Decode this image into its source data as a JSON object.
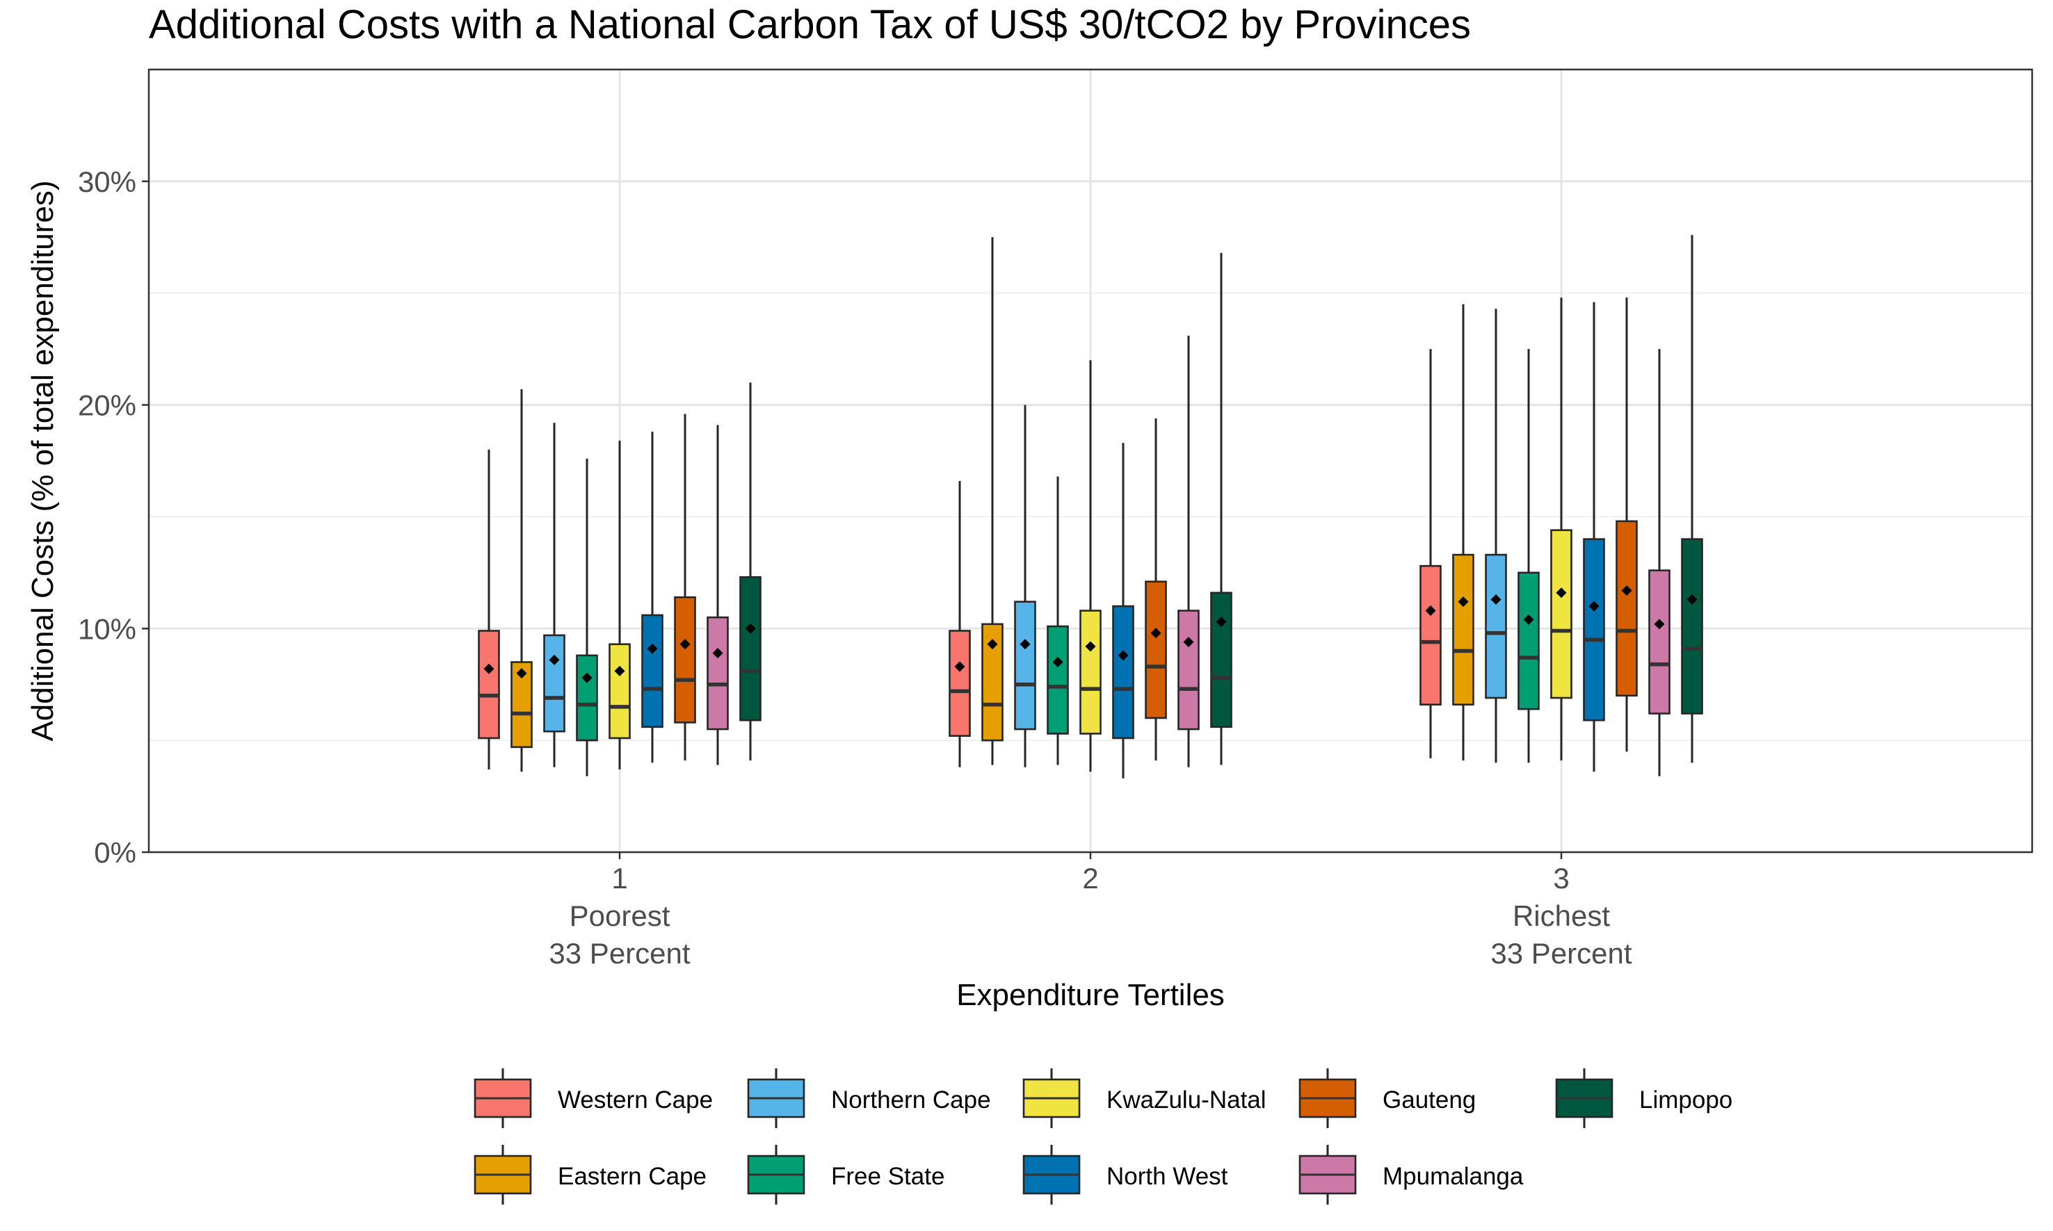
{
  "chart_data": {
    "type": "boxplot",
    "title": "Additional Costs with a National Carbon Tax of US$ 30/tCO2 by Provinces",
    "xlabel": "Expenditure Tertiles",
    "ylabel": "Additional Costs (% of total expenditures)",
    "ylim": [
      0,
      35
    ],
    "y_ticks": [
      0,
      10,
      20,
      30
    ],
    "y_tick_labels": [
      "0%",
      "10%",
      "20%",
      "30%"
    ],
    "grid": true,
    "legend_position": "bottom",
    "categories": [
      {
        "id": "1",
        "lines": [
          "1",
          "Poorest",
          "33 Percent"
        ]
      },
      {
        "id": "2",
        "lines": [
          "2"
        ]
      },
      {
        "id": "3",
        "lines": [
          "3",
          "Richest",
          "33 Percent"
        ]
      }
    ],
    "series": [
      {
        "name": "Western Cape",
        "color": "#F8766D",
        "boxes": [
          {
            "lower_whisker": 3.7,
            "q1": 5.1,
            "median": 7.0,
            "q3": 9.9,
            "upper_whisker": 18.0,
            "mean": 8.2
          },
          {
            "lower_whisker": 3.8,
            "q1": 5.2,
            "median": 7.2,
            "q3": 9.9,
            "upper_whisker": 16.6,
            "mean": 8.3
          },
          {
            "lower_whisker": 4.2,
            "q1": 6.6,
            "median": 9.4,
            "q3": 12.8,
            "upper_whisker": 22.5,
            "mean": 10.8
          }
        ]
      },
      {
        "name": "Eastern Cape",
        "color": "#E69F00",
        "boxes": [
          {
            "lower_whisker": 3.6,
            "q1": 4.7,
            "median": 6.2,
            "q3": 8.5,
            "upper_whisker": 20.7,
            "mean": 8.0
          },
          {
            "lower_whisker": 3.9,
            "q1": 5.0,
            "median": 6.6,
            "q3": 10.2,
            "upper_whisker": 27.5,
            "mean": 9.3
          },
          {
            "lower_whisker": 4.1,
            "q1": 6.6,
            "median": 9.0,
            "q3": 13.3,
            "upper_whisker": 24.5,
            "mean": 11.2
          }
        ]
      },
      {
        "name": "Northern Cape",
        "color": "#56B4E9",
        "boxes": [
          {
            "lower_whisker": 3.8,
            "q1": 5.4,
            "median": 6.9,
            "q3": 9.7,
            "upper_whisker": 19.2,
            "mean": 8.6
          },
          {
            "lower_whisker": 3.8,
            "q1": 5.5,
            "median": 7.5,
            "q3": 11.2,
            "upper_whisker": 20.0,
            "mean": 9.3
          },
          {
            "lower_whisker": 4.0,
            "q1": 6.9,
            "median": 9.8,
            "q3": 13.3,
            "upper_whisker": 24.3,
            "mean": 11.3
          }
        ]
      },
      {
        "name": "Free State",
        "color": "#009E73",
        "boxes": [
          {
            "lower_whisker": 3.4,
            "q1": 5.0,
            "median": 6.6,
            "q3": 8.8,
            "upper_whisker": 17.6,
            "mean": 7.8
          },
          {
            "lower_whisker": 3.9,
            "q1": 5.3,
            "median": 7.4,
            "q3": 10.1,
            "upper_whisker": 16.8,
            "mean": 8.5
          },
          {
            "lower_whisker": 4.0,
            "q1": 6.4,
            "median": 8.7,
            "q3": 12.5,
            "upper_whisker": 22.5,
            "mean": 10.4
          }
        ]
      },
      {
        "name": "KwaZulu-Natal",
        "color": "#F0E442",
        "boxes": [
          {
            "lower_whisker": 3.7,
            "q1": 5.1,
            "median": 6.5,
            "q3": 9.3,
            "upper_whisker": 18.4,
            "mean": 8.1
          },
          {
            "lower_whisker": 3.6,
            "q1": 5.3,
            "median": 7.3,
            "q3": 10.8,
            "upper_whisker": 22.0,
            "mean": 9.2
          },
          {
            "lower_whisker": 4.1,
            "q1": 6.9,
            "median": 9.9,
            "q3": 14.4,
            "upper_whisker": 24.8,
            "mean": 11.6
          }
        ]
      },
      {
        "name": "North West",
        "color": "#0072B2",
        "boxes": [
          {
            "lower_whisker": 4.0,
            "q1": 5.6,
            "median": 7.3,
            "q3": 10.6,
            "upper_whisker": 18.8,
            "mean": 9.1
          },
          {
            "lower_whisker": 3.3,
            "q1": 5.1,
            "median": 7.3,
            "q3": 11.0,
            "upper_whisker": 18.3,
            "mean": 8.8
          },
          {
            "lower_whisker": 3.6,
            "q1": 5.9,
            "median": 9.5,
            "q3": 14.0,
            "upper_whisker": 24.6,
            "mean": 11.0
          }
        ]
      },
      {
        "name": "Gauteng",
        "color": "#D55E00",
        "boxes": [
          {
            "lower_whisker": 4.1,
            "q1": 5.8,
            "median": 7.7,
            "q3": 11.4,
            "upper_whisker": 19.6,
            "mean": 9.3
          },
          {
            "lower_whisker": 4.1,
            "q1": 6.0,
            "median": 8.3,
            "q3": 12.1,
            "upper_whisker": 19.4,
            "mean": 9.8
          },
          {
            "lower_whisker": 4.5,
            "q1": 7.0,
            "median": 9.9,
            "q3": 14.8,
            "upper_whisker": 24.8,
            "mean": 11.7
          }
        ]
      },
      {
        "name": "Mpumalanga",
        "color": "#CC79A7",
        "boxes": [
          {
            "lower_whisker": 3.9,
            "q1": 5.5,
            "median": 7.5,
            "q3": 10.5,
            "upper_whisker": 19.1,
            "mean": 8.9
          },
          {
            "lower_whisker": 3.8,
            "q1": 5.5,
            "median": 7.3,
            "q3": 10.8,
            "upper_whisker": 23.1,
            "mean": 9.4
          },
          {
            "lower_whisker": 3.4,
            "q1": 6.2,
            "median": 8.4,
            "q3": 12.6,
            "upper_whisker": 22.5,
            "mean": 10.2
          }
        ]
      },
      {
        "name": "Limpopo",
        "color": "#00573F",
        "boxes": [
          {
            "lower_whisker": 4.1,
            "q1": 5.9,
            "median": 8.1,
            "q3": 12.3,
            "upper_whisker": 21.0,
            "mean": 10.0
          },
          {
            "lower_whisker": 3.9,
            "q1": 5.6,
            "median": 7.8,
            "q3": 11.6,
            "upper_whisker": 26.8,
            "mean": 10.3
          },
          {
            "lower_whisker": 4.0,
            "q1": 6.2,
            "median": 9.1,
            "q3": 14.0,
            "upper_whisker": 27.6,
            "mean": 11.3
          }
        ]
      }
    ]
  }
}
